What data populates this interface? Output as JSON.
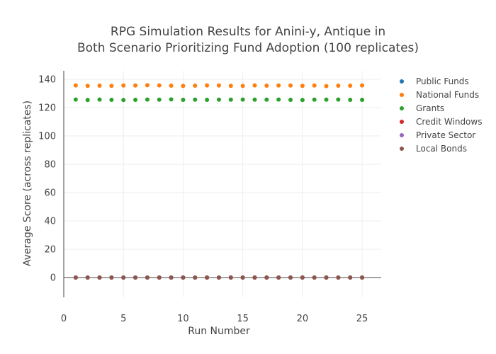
{
  "chart_data": {
    "type": "scatter",
    "title_lines": [
      "RPG Simulation Results for Anini-y, Antique in",
      "Both Scenario Prioritizing Fund Adoption (100 replicates)"
    ],
    "xlabel": "Run Number",
    "ylabel": "Average Score (across replicates)",
    "xlim": [
      0,
      26.6
    ],
    "ylim": [
      -14,
      146
    ],
    "xticks": [
      0,
      5,
      10,
      15,
      20,
      25
    ],
    "yticks": [
      0,
      20,
      40,
      60,
      80,
      100,
      120,
      140
    ],
    "grid": true,
    "legend_position": "right",
    "x": [
      1,
      2,
      3,
      4,
      5,
      6,
      7,
      8,
      9,
      10,
      11,
      12,
      13,
      14,
      15,
      16,
      17,
      18,
      19,
      20,
      21,
      22,
      23,
      24,
      25
    ],
    "series": [
      {
        "name": "Public Funds",
        "color": "#1f77b4",
        "values": [
          0,
          0,
          0,
          0,
          0,
          0,
          0,
          0,
          0,
          0,
          0,
          0,
          0,
          0,
          0,
          0,
          0,
          0,
          0,
          0,
          0,
          0,
          0,
          0,
          0
        ]
      },
      {
        "name": "National Funds",
        "color": "#ff7f0e",
        "values": [
          135.7,
          135.4,
          135.5,
          135.4,
          135.6,
          135.6,
          135.8,
          135.7,
          135.5,
          135.3,
          135.5,
          135.7,
          135.6,
          135.4,
          135.3,
          135.7,
          135.5,
          135.6,
          135.6,
          135.4,
          135.6,
          135.2,
          135.5,
          135.5,
          135.7
        ]
      },
      {
        "name": "Grants",
        "color": "#2ca02c",
        "values": [
          125.7,
          125.4,
          125.7,
          125.5,
          125.4,
          125.5,
          125.7,
          125.6,
          125.8,
          125.5,
          125.6,
          125.5,
          125.6,
          125.6,
          125.7,
          125.6,
          125.6,
          125.7,
          125.5,
          125.4,
          125.6,
          125.6,
          125.7,
          125.5,
          125.5
        ]
      },
      {
        "name": "Credit Windows",
        "color": "#d62728",
        "values": [
          0,
          0,
          0,
          0,
          0,
          0,
          0,
          0,
          0,
          0,
          0,
          0,
          0,
          0,
          0,
          0,
          0,
          0,
          0,
          0,
          0,
          0,
          0,
          0,
          0
        ]
      },
      {
        "name": "Private Sector",
        "color": "#9467bd",
        "values": [
          0,
          0,
          0,
          0,
          0,
          0,
          0,
          0,
          0,
          0,
          0,
          0,
          0,
          0,
          0,
          0,
          0,
          0,
          0,
          0,
          0,
          0,
          0,
          0,
          0
        ]
      },
      {
        "name": "Local Bonds",
        "color": "#8c564b",
        "values": [
          0,
          0,
          0,
          0,
          0,
          0,
          0,
          0,
          0,
          0,
          0,
          0,
          0,
          0,
          0,
          0,
          0,
          0,
          0,
          0,
          0,
          0,
          0,
          0,
          0
        ]
      }
    ]
  }
}
